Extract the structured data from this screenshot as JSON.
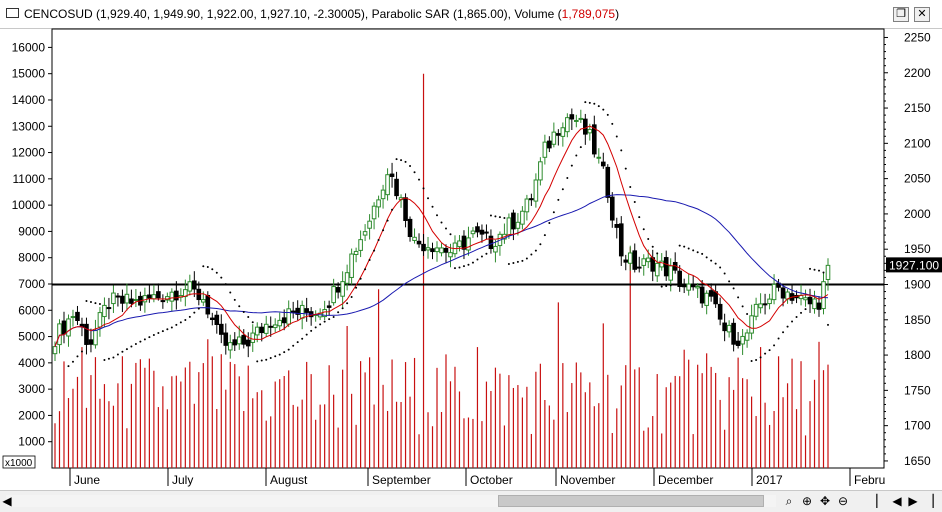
{
  "window": {
    "symbol": "CENCOSUD",
    "ohlc_text": "(1,929.40, 1,949.90, 1,922.00, 1,927.10, -2.30005)",
    "sar_text": ", Parabolic SAR (1,865.00), Volume (",
    "volume_text": "1,789,075",
    "close_paren": ")",
    "restore_glyph": "❐",
    "close_glyph": "✕"
  },
  "colors": {
    "up_candle": "#2e8b2e",
    "down_candle": "#000000",
    "sma_fast": "#d40000",
    "sma_slow": "#1a1ab0",
    "volume": "#c81010",
    "sar": "#000000",
    "hline": "#000000"
  },
  "chart_data": {
    "type": "candlestick",
    "price_axis": {
      "min": 1640,
      "max": 2260,
      "ticks": [
        1650,
        1700,
        1750,
        1800,
        1850,
        1900,
        1950,
        2000,
        2050,
        2100,
        2150,
        2200,
        2250
      ]
    },
    "volume_axis": {
      "min": 0,
      "max": 16700,
      "ticks": [
        1000,
        2000,
        3000,
        4000,
        5000,
        6000,
        7000,
        8000,
        9000,
        10000,
        11000,
        12000,
        13000,
        14000,
        15000,
        16000
      ],
      "multiplier_label": "x1000"
    },
    "months": [
      "June",
      "July",
      "August",
      "September",
      "October",
      "November",
      "December",
      "2017",
      "Febru"
    ],
    "last_price_label": "1927.100",
    "horizontal_line": 1900,
    "sar_value": 1865.0,
    "last_volume": 1789075,
    "grid": false,
    "legend": "none"
  },
  "statusbar": {
    "left_arrow": "◀",
    "icons": [
      "⌕",
      "⊕",
      "✥",
      "⊖"
    ],
    "nav": [
      "▏",
      "◀",
      "▶",
      "▕"
    ]
  }
}
